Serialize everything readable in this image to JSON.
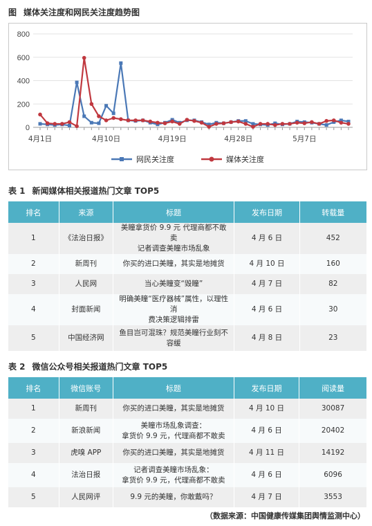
{
  "figure": {
    "label": "图",
    "title": "媒体关注度和网民关注度趋势图"
  },
  "chart_data": {
    "type": "line",
    "ylim": [
      0,
      800
    ],
    "yticks": [
      0,
      200,
      400,
      600,
      800
    ],
    "xtick_labels": [
      "4月1日",
      "4月10日",
      "4月19日",
      "4月28日",
      "5月7日"
    ],
    "x": [
      "4月1日",
      "4月2日",
      "4月3日",
      "4月4日",
      "4月5日",
      "4月6日",
      "4月7日",
      "4月8日",
      "4月9日",
      "4月10日",
      "4月11日",
      "4月12日",
      "4月13日",
      "4月14日",
      "4月15日",
      "4月16日",
      "4月17日",
      "4月18日",
      "4月19日",
      "4月20日",
      "4月21日",
      "4月22日",
      "4月23日",
      "4月24日",
      "4月25日",
      "4月26日",
      "4月27日",
      "4月28日",
      "4月29日",
      "4月30日",
      "5月1日",
      "5月2日",
      "5月3日",
      "5月4日",
      "5月5日",
      "5月6日",
      "5月7日",
      "5月8日",
      "5月9日",
      "5月10日",
      "5月11日",
      "5月12日",
      "5月13日"
    ],
    "series": [
      {
        "name": "网民关注度",
        "color": "#4a78b6",
        "marker": "square",
        "values": [
          30,
          25,
          20,
          25,
          15,
          385,
          95,
          40,
          35,
          185,
          120,
          550,
          60,
          55,
          60,
          40,
          25,
          40,
          65,
          40,
          60,
          60,
          45,
          25,
          40,
          35,
          45,
          55,
          55,
          30,
          25,
          20,
          35,
          25,
          30,
          50,
          45,
          40,
          30,
          20,
          45,
          60,
          50
        ]
      },
      {
        "name": "媒体关注度",
        "color": "#c0383f",
        "marker": "circle",
        "values": [
          110,
          35,
          30,
          30,
          45,
          10,
          595,
          200,
          95,
          60,
          80,
          70,
          60,
          60,
          60,
          50,
          40,
          35,
          50,
          30,
          65,
          55,
          40,
          5,
          30,
          35,
          45,
          50,
          30,
          5,
          30,
          30,
          20,
          30,
          30,
          40,
          35,
          45,
          30,
          55,
          60,
          40,
          30
        ]
      }
    ]
  },
  "table1": {
    "label": "表 1",
    "title": "新闻媒体相关报道热门文章 TOP5",
    "headers": [
      "排名",
      "来源",
      "标题",
      "发布日期",
      "转载量"
    ],
    "rows": [
      {
        "rank": "1",
        "source": "《法治日报》",
        "title_lines": [
          "美瞳拿货价 9.9 元 代理商都不敢卖",
          "记者调查美瞳市场乱象"
        ],
        "date": "4 月 6 日",
        "count": "452"
      },
      {
        "rank": "2",
        "source": "新周刊",
        "title_lines": [
          "你买的进口美瞳，其实是地摊货"
        ],
        "date": "4 月 10 日",
        "count": "160"
      },
      {
        "rank": "3",
        "source": "人民网",
        "title_lines": [
          "当心美瞳变“毁瞳”"
        ],
        "date": "4 月 7 日",
        "count": "82"
      },
      {
        "rank": "4",
        "source": "封面新闻",
        "title_lines": [
          "明确美瞳“医疗器械”属性，以理性消",
          "费决策逻辑排雷"
        ],
        "date": "4 月 6 日",
        "count": "30"
      },
      {
        "rank": "5",
        "source": "中国经济网",
        "title_lines": [
          "鱼目岂可混珠？规范美瞳行业刻不",
          "容缓"
        ],
        "date": "4 月 8 日",
        "count": "23"
      }
    ]
  },
  "table2": {
    "label": "表 2",
    "title": "微信公众号相关报道热门文章 TOP5",
    "headers": [
      "排名",
      "微信账号",
      "标题",
      "发布日期",
      "阅读量"
    ],
    "rows": [
      {
        "rank": "1",
        "source": "新周刊",
        "title_lines": [
          "你买的进口美瞳，其实是地摊货"
        ],
        "date": "4 月 10 日",
        "count": "30087"
      },
      {
        "rank": "2",
        "source": "新浪新闻",
        "title_lines": [
          "美瞳市场乱象调查：",
          "拿货价 9.9 元，代理商都不敢卖"
        ],
        "date": "4 月 6 日",
        "count": "20402"
      },
      {
        "rank": "3",
        "source": "虎嗅 APP",
        "title_lines": [
          "你买的进口美瞳，其实是地摊货"
        ],
        "date": "4 月 11 日",
        "count": "14192"
      },
      {
        "rank": "4",
        "source": "法治日报",
        "title_lines": [
          "记者调查美瞳市场乱象：",
          "拿货价 9.9 元，代理商都不敢卖"
        ],
        "date": "4 月 6 日",
        "count": "6096"
      },
      {
        "rank": "5",
        "source": "人民网评",
        "title_lines": [
          "9.9 元的美瞳，你敢戴吗？"
        ],
        "date": "4 月 7 日",
        "count": "3553"
      }
    ]
  },
  "source_note": "（数据来源：中国健康传媒集团舆情监测中心）"
}
